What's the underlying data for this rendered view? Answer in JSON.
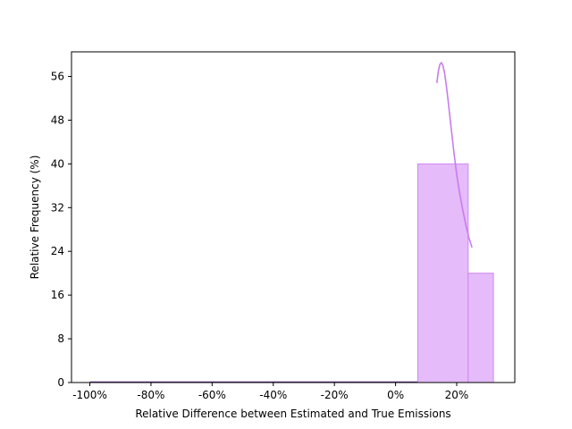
{
  "chart_data": {
    "type": "histogram",
    "title": "",
    "xlabel": "Relative Difference between Estimated and True Emissions",
    "ylabel": "Relative Frequency (%)",
    "xlim": [
      -1.06,
      0.39
    ],
    "ylim": [
      0,
      60.5
    ],
    "x_ticks": [
      {
        "value": -1.0,
        "label": "-100%"
      },
      {
        "value": -0.8,
        "label": "-80%"
      },
      {
        "value": -0.6,
        "label": "-60%"
      },
      {
        "value": -0.4,
        "label": "-40%"
      },
      {
        "value": -0.2,
        "label": "-20%"
      },
      {
        "value": 0.0,
        "label": "0%"
      },
      {
        "value": 0.2,
        "label": "20%"
      }
    ],
    "y_ticks": [
      {
        "value": 0,
        "label": "0"
      },
      {
        "value": 8,
        "label": "8"
      },
      {
        "value": 16,
        "label": "16"
      },
      {
        "value": 24,
        "label": "24"
      },
      {
        "value": 32,
        "label": "32"
      },
      {
        "value": 40,
        "label": "40"
      },
      {
        "value": 48,
        "label": "48"
      },
      {
        "value": 56,
        "label": "56"
      }
    ],
    "bins": [
      {
        "x0": -1.0,
        "x1": 0.0725,
        "value": 0
      },
      {
        "x0": 0.0725,
        "x1": 0.2375,
        "value": 40
      },
      {
        "x0": 0.2375,
        "x1": 0.32,
        "value": 20
      }
    ],
    "kde": {
      "x": [
        0.135,
        0.14,
        0.145,
        0.15,
        0.155,
        0.16,
        0.165,
        0.17,
        0.175,
        0.18,
        0.19,
        0.2,
        0.21,
        0.22,
        0.23,
        0.24,
        0.25
      ],
      "y": [
        54.8,
        57.0,
        58.2,
        58.5,
        58.0,
        56.7,
        54.8,
        52.5,
        50.0,
        47.5,
        42.5,
        38.0,
        34.5,
        31.5,
        28.8,
        26.5,
        24.7
      ]
    },
    "colors": {
      "bar_fill": "#e5bbf9",
      "bar_edge": "#cf87f2",
      "kde_line": "#c77dec",
      "zero_line": "#6a3aa6"
    },
    "grid": false,
    "legend": "none"
  }
}
